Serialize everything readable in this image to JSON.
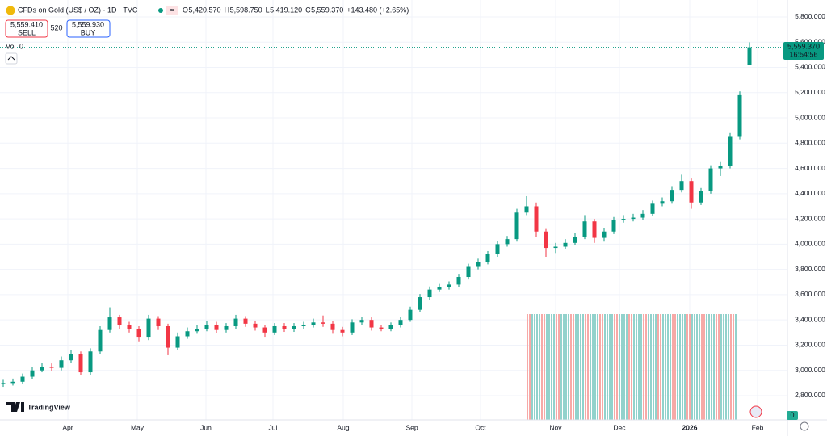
{
  "header": {
    "title": "CFDs on Gold (US$ / OZ) · 1D · TVC",
    "ohlc": [
      "O",
      "5,420.570",
      "H",
      "5,598.750",
      "L",
      "5,419.120",
      "C",
      "5,559.370",
      "+143.480 (+2.65%)"
    ],
    "sell_price": "5,559.410",
    "sell": "SELL",
    "spread": "520",
    "buy_price": "5,559.930",
    "buy": "BUY",
    "vol_label": "Vol",
    "vol_value": "0",
    "logo": "TradingView",
    "price_tag": "5,559.370",
    "countdown": "16:54:56",
    "corner_value": "0"
  },
  "chart_data": {
    "type": "candlestick",
    "up_color": "#089981",
    "down_color": "#f23645",
    "grid": true,
    "open": [
      2890,
      2900,
      2910,
      2950,
      3000,
      3030,
      3020,
      3080,
      3130,
      2985,
      3150,
      3320,
      3420,
      3360,
      3330,
      3260,
      3410,
      3350,
      3180,
      3270,
      3310,
      3330,
      3360,
      3320,
      3350,
      3410,
      3370,
      3340,
      3300,
      3350,
      3330,
      3350,
      3360,
      3380,
      3370,
      3320,
      3300,
      3380,
      3400,
      3340,
      3330,
      3360,
      3400,
      3480,
      3580,
      3640,
      3660,
      3680,
      3740,
      3820,
      3860,
      3920,
      4000,
      4040,
      4250,
      4300,
      4100,
      3970,
      3980,
      4010,
      4060,
      4180,
      4050,
      4100,
      4190,
      4200,
      4210,
      4240,
      4320,
      4340,
      4430,
      4500,
      4330,
      4420,
      4600,
      4620,
      4850,
      5420.57
    ],
    "high": [
      2925,
      2935,
      2975,
      3030,
      3060,
      3055,
      3110,
      3160,
      3150,
      3175,
      3350,
      3500,
      3440,
      3385,
      3350,
      3440,
      3430,
      3370,
      3300,
      3340,
      3360,
      3390,
      3385,
      3375,
      3440,
      3430,
      3395,
      3360,
      3375,
      3375,
      3375,
      3385,
      3410,
      3435,
      3390,
      3345,
      3405,
      3425,
      3420,
      3360,
      3380,
      3425,
      3505,
      3605,
      3665,
      3685,
      3705,
      3765,
      3845,
      3885,
      3945,
      4025,
      4065,
      4280,
      4380,
      4330,
      4120,
      4010,
      4040,
      4090,
      4230,
      4200,
      4130,
      4215,
      4230,
      4240,
      4270,
      4345,
      4370,
      4460,
      4550,
      4520,
      4445,
      4625,
      4650,
      4880,
      5210,
      5598.75
    ],
    "low": [
      2870,
      2880,
      2890,
      2930,
      2985,
      2995,
      3000,
      3060,
      2960,
      2965,
      3130,
      3300,
      3330,
      3300,
      3230,
      3240,
      3320,
      3120,
      3160,
      3250,
      3290,
      3310,
      3295,
      3300,
      3330,
      3345,
      3315,
      3260,
      3280,
      3305,
      3305,
      3330,
      3340,
      3345,
      3290,
      3270,
      3280,
      3360,
      3315,
      3310,
      3310,
      3340,
      3385,
      3465,
      3560,
      3620,
      3640,
      3660,
      3720,
      3800,
      3840,
      3900,
      3980,
      4020,
      4230,
      4060,
      3900,
      3930,
      3960,
      3990,
      4040,
      4010,
      4020,
      4080,
      4170,
      4180,
      4190,
      4220,
      4300,
      4320,
      4410,
      4280,
      4310,
      4400,
      4540,
      4600,
      4830,
      5419.12
    ],
    "close": [
      2900,
      2910,
      2950,
      3000,
      3030,
      3020,
      3080,
      3130,
      2985,
      3150,
      3320,
      3420,
      3360,
      3330,
      3260,
      3410,
      3350,
      3180,
      3270,
      3310,
      3330,
      3360,
      3320,
      3350,
      3410,
      3370,
      3340,
      3300,
      3350,
      3330,
      3350,
      3360,
      3380,
      3370,
      3320,
      3300,
      3380,
      3400,
      3340,
      3330,
      3360,
      3400,
      3480,
      3580,
      3640,
      3660,
      3680,
      3740,
      3820,
      3860,
      3920,
      4000,
      4040,
      4250,
      4300,
      4100,
      3970,
      3980,
      4010,
      4060,
      4180,
      4050,
      4100,
      4190,
      4200,
      4210,
      4240,
      4320,
      4340,
      4430,
      4500,
      4330,
      4420,
      4600,
      4620,
      4850,
      5180,
      5559.37
    ],
    "xlim": [
      -0.333,
      80.917
    ],
    "xticks": [
      {
        "value": 6.667,
        "label": "Apr"
      },
      {
        "value": 13.833,
        "label": "May"
      },
      {
        "value": 20.917,
        "label": "Jun"
      },
      {
        "value": 27.833,
        "label": "Jul"
      },
      {
        "value": 35.083,
        "label": "Aug"
      },
      {
        "value": 42.167,
        "label": "Sep"
      },
      {
        "value": 49.25,
        "label": "Oct"
      },
      {
        "value": 57,
        "label": "Nov"
      },
      {
        "value": 63.583,
        "label": "Dec"
      },
      {
        "value": 70.833,
        "label": "2026"
      },
      {
        "value": 77.833,
        "label": "Feb"
      }
    ],
    "ylim": [
      2608,
      5934
    ],
    "yticks": [
      {
        "value": 2800,
        "label": "2,800.000"
      },
      {
        "value": 3000,
        "label": "3,000.000"
      },
      {
        "value": 3200,
        "label": "3,200.000"
      },
      {
        "value": 3400,
        "label": "3,400.000"
      },
      {
        "value": 3600,
        "label": "3,600.000"
      },
      {
        "value": 3800,
        "label": "3,800.000"
      },
      {
        "value": 4000,
        "label": "4,000.000"
      },
      {
        "value": 4200,
        "label": "4,200.000"
      },
      {
        "value": 4400,
        "label": "4,400.000"
      },
      {
        "value": 4600,
        "label": "4,600.000"
      },
      {
        "value": 4800,
        "label": "4,800.000"
      },
      {
        "value": 5000,
        "label": "5,000.000"
      },
      {
        "value": 5200,
        "label": "5,200.000"
      },
      {
        "value": 5400,
        "label": "5,400.000"
      },
      {
        "value": 5600,
        "label": "5,600.000"
      },
      {
        "value": 5800,
        "label": "5,800.000"
      }
    ]
  }
}
